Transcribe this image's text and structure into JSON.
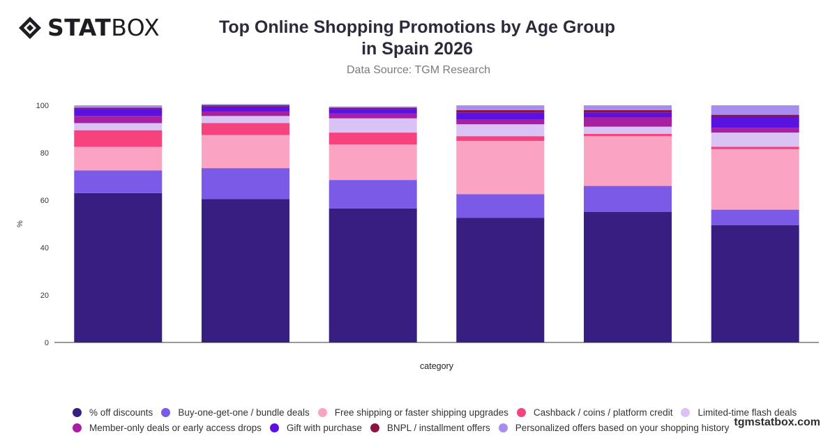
{
  "brand": {
    "logo_bold": "STAT",
    "logo_light": "BOX",
    "watermark": "tgmstatbox.com"
  },
  "header": {
    "title": "Top Online Shopping Promotions by Age Group in Spain 2026",
    "subtitle": "Data Source: TGM Research"
  },
  "chart_data": {
    "type": "bar",
    "stacked": true,
    "title": "Top Online Shopping Promotions by Age Group in Spain 2026",
    "subtitle": "Data Source: TGM Research",
    "xlabel": "category",
    "ylabel": "%",
    "ylim": [
      0,
      100
    ],
    "yticks": [
      0,
      20,
      40,
      60,
      80,
      100
    ],
    "grid": false,
    "legend_position": "bottom",
    "categories": [
      "",
      "",
      "",
      "",
      "",
      ""
    ],
    "series": [
      {
        "name": "% off discounts",
        "color": "#361f80",
        "values": [
          63,
          60.5,
          56.5,
          52.5,
          55,
          49.5
        ]
      },
      {
        "name": "Buy-one-get-one / bundle deals",
        "color": "#7b5ae8",
        "values": [
          9.5,
          13,
          12,
          10,
          11,
          6.5
        ]
      },
      {
        "name": "Free shipping or faster shipping upgrades",
        "color": "#fba3c3",
        "values": [
          10,
          14,
          15,
          22.5,
          21,
          25.5
        ]
      },
      {
        "name": "Cashback / coins / platform credit",
        "color": "#f6437e",
        "values": [
          7,
          5,
          5,
          2,
          1,
          1
        ]
      },
      {
        "name": "Limited-time flash deals",
        "color": "#d8c3f4",
        "values": [
          3,
          3,
          6,
          5,
          3,
          6
        ]
      },
      {
        "name": "Member-only deals or early access drops",
        "color": "#a71fa2",
        "values": [
          3,
          2,
          2,
          2,
          4,
          2
        ]
      },
      {
        "name": "Gift with purchase",
        "color": "#5b12e0",
        "values": [
          3,
          2,
          2,
          3,
          2,
          4.5
        ]
      },
      {
        "name": "BNPL / installment offers",
        "color": "#8b1542",
        "values": [
          0.5,
          0.5,
          0.5,
          1,
          1,
          1
        ]
      },
      {
        "name": "Personalized offers based on your shopping history",
        "color": "#a88df0",
        "values": [
          1,
          0.5,
          0.5,
          2,
          2,
          4
        ]
      }
    ]
  }
}
